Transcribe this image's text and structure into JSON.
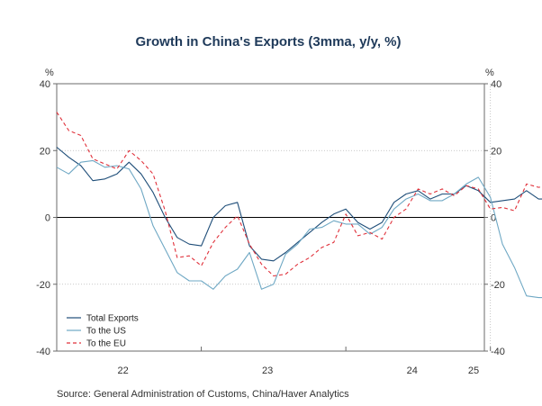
{
  "chart_data": {
    "type": "line",
    "title": "Growth in China's Exports (3mma, y/y, %)",
    "left_unit": "%",
    "right_unit": "%",
    "source": "Source:  General Administration of Customs, China/Haver Analytics",
    "ylim": [
      -40,
      40
    ],
    "yticks": [
      -40,
      -20,
      0,
      20,
      40
    ],
    "xlim": [
      0,
      35.5
    ],
    "xticks": [
      {
        "label": "22",
        "pos": 5.5
      },
      {
        "label": "23",
        "pos": 17.5
      },
      {
        "label": "24",
        "pos": 29.5
      },
      {
        "label": "25",
        "pos": 41.5
      }
    ],
    "year_boundaries": [
      12,
      24,
      36
    ],
    "grid": true,
    "legend_position": "bottom-left",
    "series": [
      {
        "name": "Total Exports",
        "color": "#1f4e79",
        "dash": "",
        "values": [
          21,
          18,
          15.5,
          11,
          11.5,
          13,
          16.5,
          13,
          7.5,
          0,
          -6,
          -8,
          -8.5,
          0,
          3.5,
          4.5,
          -8.5,
          -12.5,
          -13,
          -10.5,
          -7.5,
          -4.5,
          -1.5,
          1,
          2.5,
          -1.5,
          -3.5,
          -1.5,
          4.5,
          7,
          8,
          5.5,
          7,
          7,
          9.5,
          8,
          4.5,
          5,
          5.5,
          8,
          5.5,
          5.5
        ]
      },
      {
        "name": "To the US",
        "color": "#6fa8c4",
        "dash": "",
        "values": [
          15,
          13,
          16.5,
          17,
          15,
          15.5,
          14.5,
          8.5,
          -2.5,
          -9.5,
          -16.5,
          -19,
          -19,
          -21.5,
          -17.5,
          -15.5,
          -10.5,
          -21.5,
          -20,
          -11,
          -8,
          -3.5,
          -3,
          -1,
          -2,
          -2,
          -5,
          -3,
          2.5,
          5.5,
          7,
          5,
          5,
          7,
          10,
          12,
          6,
          -8,
          -15,
          -23.5,
          -24,
          -24
        ]
      },
      {
        "name": "To the EU",
        "color": "#e0303a",
        "dash": "4,3",
        "values": [
          31.5,
          26,
          24.5,
          17.5,
          16,
          14.5,
          20,
          17,
          13,
          2,
          -12,
          -11.5,
          -14.5,
          -7.5,
          -3,
          0.5,
          -8,
          -14,
          -17.5,
          -17,
          -14,
          -12,
          -9,
          -7.5,
          1,
          -5.5,
          -4.5,
          -6.5,
          0,
          2.5,
          8.5,
          7,
          8.5,
          6.5,
          9.5,
          8.5,
          2.5,
          3,
          2,
          10,
          9,
          9.5
        ]
      }
    ]
  }
}
